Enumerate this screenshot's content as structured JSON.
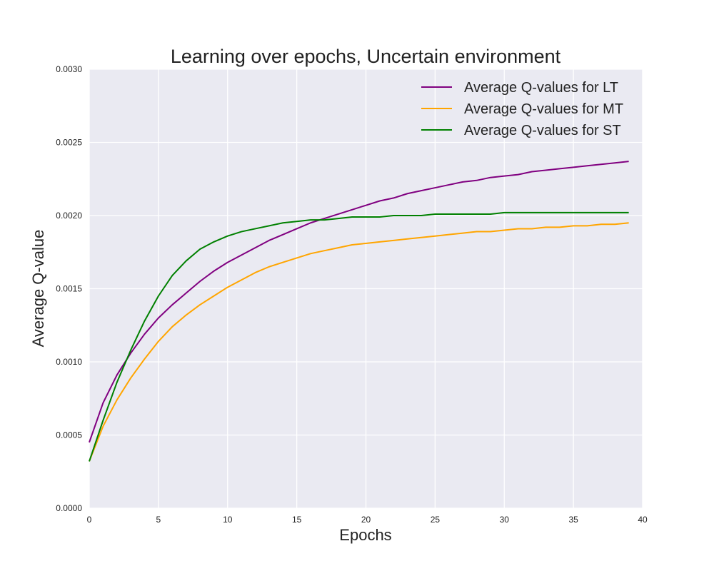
{
  "chart_data": {
    "type": "line",
    "title": "Learning over epochs, Uncertain environment",
    "xlabel": "Epochs",
    "ylabel": "Average Q-value",
    "xlim": [
      0,
      40
    ],
    "ylim": [
      0,
      0.003
    ],
    "xticks": [
      0,
      5,
      10,
      15,
      20,
      25,
      30,
      35,
      40
    ],
    "yticks": [
      0,
      0.0005,
      0.001,
      0.0015,
      0.002,
      0.0025,
      0.003
    ],
    "xtick_labels": [
      "0",
      "5",
      "10",
      "15",
      "20",
      "25",
      "30",
      "35",
      "40"
    ],
    "ytick_labels": [
      "0.0000",
      "0.0005",
      "0.0010",
      "0.0015",
      "0.0020",
      "0.0025",
      "0.0030"
    ],
    "grid": true,
    "legend_position": "top-right",
    "background": "#eaeaf2",
    "x": [
      0,
      1,
      2,
      3,
      4,
      5,
      6,
      7,
      8,
      9,
      10,
      11,
      12,
      13,
      14,
      15,
      16,
      17,
      18,
      19,
      20,
      21,
      22,
      23,
      24,
      25,
      26,
      27,
      28,
      29,
      30,
      31,
      32,
      33,
      34,
      35,
      36,
      37,
      38,
      39
    ],
    "series": [
      {
        "name": "Average Q-values for LT",
        "color": "#800080",
        "values": [
          0.00045,
          0.00072,
          0.00091,
          0.00106,
          0.00119,
          0.0013,
          0.00139,
          0.00147,
          0.00155,
          0.00162,
          0.00168,
          0.00173,
          0.00178,
          0.00183,
          0.00187,
          0.00191,
          0.00195,
          0.00198,
          0.00201,
          0.00204,
          0.00207,
          0.0021,
          0.00212,
          0.00215,
          0.00217,
          0.00219,
          0.00221,
          0.00223,
          0.00224,
          0.00226,
          0.00227,
          0.00228,
          0.0023,
          0.00231,
          0.00232,
          0.00233,
          0.00234,
          0.00235,
          0.00236,
          0.00237
        ]
      },
      {
        "name": "Average Q-values for MT",
        "color": "#ffa500",
        "values": [
          0.00032,
          0.00056,
          0.00074,
          0.00089,
          0.00102,
          0.00114,
          0.00124,
          0.00132,
          0.00139,
          0.00145,
          0.00151,
          0.00156,
          0.00161,
          0.00165,
          0.00168,
          0.00171,
          0.00174,
          0.00176,
          0.00178,
          0.0018,
          0.00181,
          0.00182,
          0.00183,
          0.00184,
          0.00185,
          0.00186,
          0.00187,
          0.00188,
          0.00189,
          0.00189,
          0.0019,
          0.00191,
          0.00191,
          0.00192,
          0.00192,
          0.00193,
          0.00193,
          0.00194,
          0.00194,
          0.00195
        ]
      },
      {
        "name": "Average Q-values for ST",
        "color": "#008000",
        "values": [
          0.00032,
          0.0006,
          0.00086,
          0.00108,
          0.00128,
          0.00145,
          0.00159,
          0.00169,
          0.00177,
          0.00182,
          0.00186,
          0.00189,
          0.00191,
          0.00193,
          0.00195,
          0.00196,
          0.00197,
          0.00197,
          0.00198,
          0.00199,
          0.00199,
          0.00199,
          0.002,
          0.002,
          0.002,
          0.00201,
          0.00201,
          0.00201,
          0.00201,
          0.00201,
          0.00202,
          0.00202,
          0.00202,
          0.00202,
          0.00202,
          0.00202,
          0.00202,
          0.00202,
          0.00202,
          0.00202
        ]
      }
    ]
  }
}
